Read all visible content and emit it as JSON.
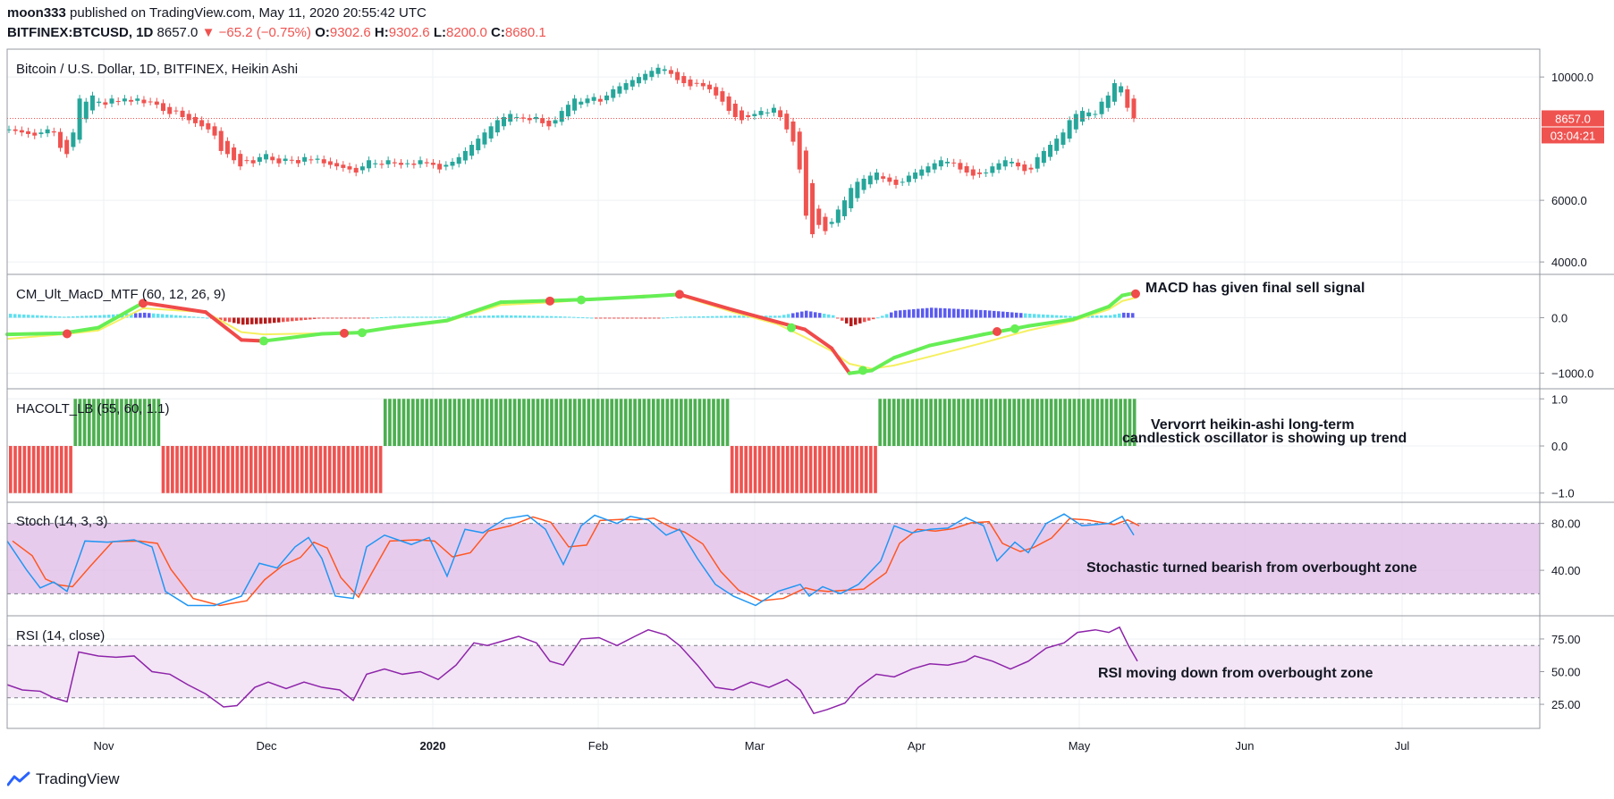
{
  "header": {
    "author": "moon333",
    "published_text": "published on TradingView.com, May 11, 2020 20:55:42 UTC",
    "symbol": "BITFINEX:BTCUSD, 1D",
    "last": "8657.0",
    "change": "−65.2 (−0.75%)",
    "o_label": "O:",
    "o": "9302.6",
    "h_label": "H:",
    "h": "9302.6",
    "l_label": "L:",
    "l": "8200.0",
    "c_label": "C:",
    "c": "8680.1"
  },
  "footer": {
    "brand": "TradingView"
  },
  "colors": {
    "up": "#26a69a",
    "down": "#ef5350",
    "macd_up": "#66ee55",
    "macd_down": "#f04a4a",
    "signal": "#f5f060",
    "hacolt_up": "#4caf50",
    "hacolt_down": "#ef5350",
    "stoch_k": "#2196f3",
    "stoch_d": "#ff5722",
    "rsi": "#8e24aa",
    "stoch_band": "#e1bee7",
    "rsi_band": "#f3e5f5"
  },
  "chart_data": [
    {
      "type": "candlestick",
      "title": "Bitcoin / U.S. Dollar, 1D, BITFINEX, Heikin Ashi",
      "x_labels": [
        "Nov",
        "Dec",
        "2020",
        "Feb",
        "Mar",
        "Apr",
        "May",
        "Jun",
        "Jul"
      ],
      "y_ticks": [
        "10000.0",
        "6000.0",
        "4000.0"
      ],
      "ylim": [
        3800,
        10700
      ],
      "last_price_label": "8657.0",
      "countdown_label": "03:04:21",
      "close_series": [
        8300,
        8250,
        8200,
        8150,
        8100,
        8200,
        8300,
        8200,
        7700,
        7500,
        8200,
        9300,
        9200,
        9400,
        9200,
        9100,
        9300,
        9200,
        9300,
        9200,
        9300,
        9150,
        9200,
        9100,
        8900,
        8800,
        8900,
        8700,
        8600,
        8500,
        8400,
        8300,
        8100,
        7600,
        7500,
        7300,
        7100,
        7300,
        7200,
        7400,
        7500,
        7300,
        7200,
        7350,
        7300,
        7200,
        7400,
        7300,
        7350,
        7200,
        7150,
        7100,
        7050,
        7000,
        6900,
        7100,
        7300,
        7200,
        7150,
        7300,
        7200,
        7150,
        7200,
        7150,
        7300,
        7200,
        7150,
        7000,
        7150,
        7250,
        7400,
        7600,
        7800,
        8000,
        8200,
        8400,
        8600,
        8700,
        8800,
        8700,
        8650,
        8600,
        8700,
        8500,
        8400,
        8600,
        8900,
        9100,
        9300,
        9200,
        9300,
        9350,
        9200,
        9400,
        9600,
        9700,
        9800,
        9900,
        10000,
        10100,
        10200,
        10300,
        10250,
        10100,
        9900,
        9800,
        9700,
        9800,
        9700,
        9600,
        9400,
        9200,
        8900,
        8700,
        8600,
        8700,
        8800,
        8900,
        8850,
        9000,
        8700,
        8300,
        7900,
        7000,
        5500,
        4900,
        5200,
        5000,
        5300,
        5700,
        6000,
        6400,
        6600,
        6700,
        6800,
        6900,
        6700,
        6600,
        6500,
        6600,
        6800,
        6900,
        7000,
        7100,
        7200,
        7300,
        7250,
        7200,
        7000,
        6900,
        6800,
        6850,
        6900,
        7100,
        7200,
        7300,
        7250,
        7100,
        6950,
        7000,
        7400,
        7600,
        7800,
        8000,
        8200,
        8600,
        8800,
        8900,
        8850,
        8800,
        9200,
        9400,
        9800,
        9700,
        9000,
        8657
      ],
      "annotation": ""
    },
    {
      "type": "line",
      "title": "CM_Ult_MacD_MTF (60, 12, 26, 9)",
      "y_ticks": [
        "0.0",
        "−1000.0"
      ],
      "ylim": [
        -1200,
        700
      ],
      "annotation": "MACD has given final sell signal"
    },
    {
      "type": "bar",
      "title": "HACOLT_LB (55, 60, 1.1)",
      "y_ticks": [
        "1.0",
        "0.0",
        "−1.0"
      ],
      "ylim": [
        -1.1,
        1.1
      ],
      "segments": [
        {
          "value": -1,
          "count": 14
        },
        {
          "value": 1,
          "count": 19
        },
        {
          "value": -1,
          "count": 48
        },
        {
          "value": 1,
          "count": 75
        },
        {
          "value": -1,
          "count": 32
        },
        {
          "value": 1,
          "count": 56
        }
      ],
      "annotation_line1": "Vervorrt heikin-ashi long-term",
      "annotation_line2": "candlestick oscillator is showing up trend"
    },
    {
      "type": "line",
      "title": "Stoch (14, 3, 3)",
      "y_ticks": [
        "80.00",
        "40.00"
      ],
      "ylim": [
        5,
        95
      ],
      "upper_band": 80,
      "lower_band": 20,
      "annotation": "Stochastic turned bearish from overbought zone"
    },
    {
      "type": "line",
      "title": "RSI (14, close)",
      "y_ticks": [
        "75.00",
        "50.00",
        "25.00"
      ],
      "ylim": [
        10,
        90
      ],
      "upper_band": 70,
      "lower_band": 30,
      "annotation": "RSI moving down from overbought zone"
    }
  ]
}
